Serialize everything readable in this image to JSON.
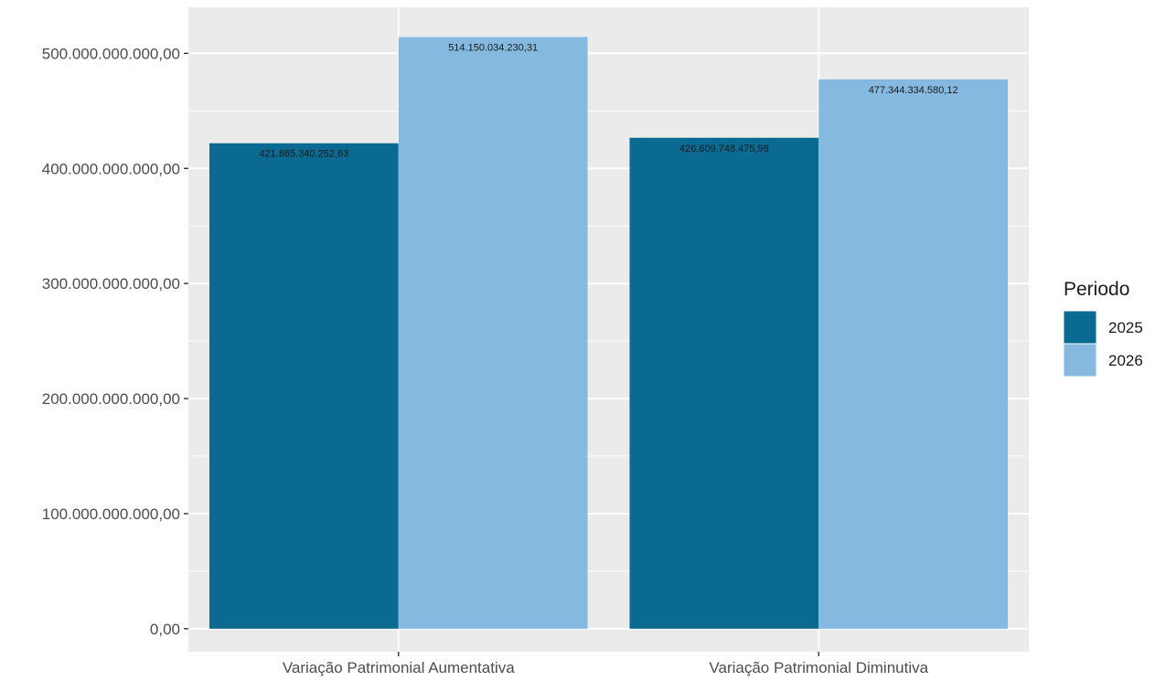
{
  "chart_data": {
    "type": "bar",
    "categories": [
      "Variação Patrimonial Aumentativa",
      "Variação Patrimonial Diminutiva"
    ],
    "series": [
      {
        "name": "2025",
        "values": [
          421865340252.63,
          426609748475.98
        ],
        "labels": [
          "421.865.340.252,63",
          "426.609.748.475,98"
        ],
        "color": "#0b6a91"
      },
      {
        "name": "2026",
        "values": [
          514150034230.31,
          477344334580.12
        ],
        "labels": [
          "514.150.034.230,31",
          "477.344.334.580,12"
        ],
        "color": "#86b9df"
      }
    ],
    "yticks": [
      0,
      100000000000,
      200000000000,
      300000000000,
      400000000000,
      500000000000
    ],
    "ytick_labels": [
      "0,00",
      "100.000.000.000,00",
      "200.000.000.000,00",
      "300.000.000.000,00",
      "400.000.000.000,00",
      "500.000.000.000,00"
    ],
    "ylim": [
      -20000000000,
      540000000000
    ],
    "grid": true,
    "legend": {
      "title": "Periodo",
      "position": "right"
    },
    "panel_background": "#ebebeb",
    "grid_color": "#ffffff"
  }
}
